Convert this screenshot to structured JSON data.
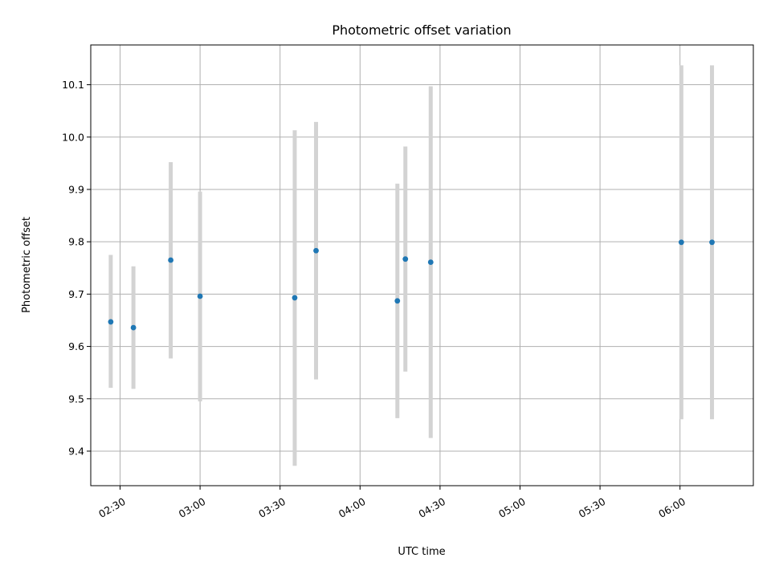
{
  "chart_data": {
    "type": "scatter",
    "title": "Photometric offset variation",
    "xlabel": "UTC time",
    "ylabel": "Photometric offset",
    "x_tick_labels": [
      "02:30",
      "03:00",
      "03:30",
      "04:00",
      "04:30",
      "05:00",
      "05:30",
      "06:00"
    ],
    "x_ticks_min": [
      150,
      180,
      210,
      240,
      270,
      300,
      330,
      360
    ],
    "xlim_min": [
      139,
      387.5
    ],
    "y_ticks": [
      9.4,
      9.5,
      9.6,
      9.7,
      9.8,
      9.9,
      10.0,
      10.1
    ],
    "y_tick_labels": [
      "9.4",
      "9.5",
      "9.6",
      "9.7",
      "9.8",
      "9.9",
      "10.0",
      "10.1"
    ],
    "ylim": [
      9.334,
      10.176
    ],
    "grid": true,
    "colors": {
      "point": "#1f77b4",
      "errorbar": "#d3d3d3"
    },
    "points": [
      {
        "t": "02:27",
        "t_min": 146.5,
        "y": 9.647,
        "lo": 9.521,
        "hi": 9.775
      },
      {
        "t": "02:35",
        "t_min": 155.0,
        "y": 9.636,
        "lo": 9.519,
        "hi": 9.753
      },
      {
        "t": "02:49",
        "t_min": 169.0,
        "y": 9.765,
        "lo": 9.577,
        "hi": 9.952
      },
      {
        "t": "03:00",
        "t_min": 180.0,
        "y": 9.696,
        "lo": 9.495,
        "hi": 9.896
      },
      {
        "t": "03:35",
        "t_min": 215.5,
        "y": 9.693,
        "lo": 9.372,
        "hi": 10.013
      },
      {
        "t": "03:43",
        "t_min": 223.5,
        "y": 9.783,
        "lo": 9.537,
        "hi": 10.029
      },
      {
        "t": "04:14",
        "t_min": 254.0,
        "y": 9.687,
        "lo": 9.463,
        "hi": 9.911
      },
      {
        "t": "04:17",
        "t_min": 257.0,
        "y": 9.767,
        "lo": 9.552,
        "hi": 9.982
      },
      {
        "t": "04:26",
        "t_min": 266.5,
        "y": 9.761,
        "lo": 9.425,
        "hi": 10.097
      },
      {
        "t": "06:00",
        "t_min": 360.5,
        "y": 9.799,
        "lo": 9.461,
        "hi": 10.137
      },
      {
        "t": "06:12",
        "t_min": 372.0,
        "y": 9.799,
        "lo": 9.461,
        "hi": 10.137
      }
    ]
  }
}
